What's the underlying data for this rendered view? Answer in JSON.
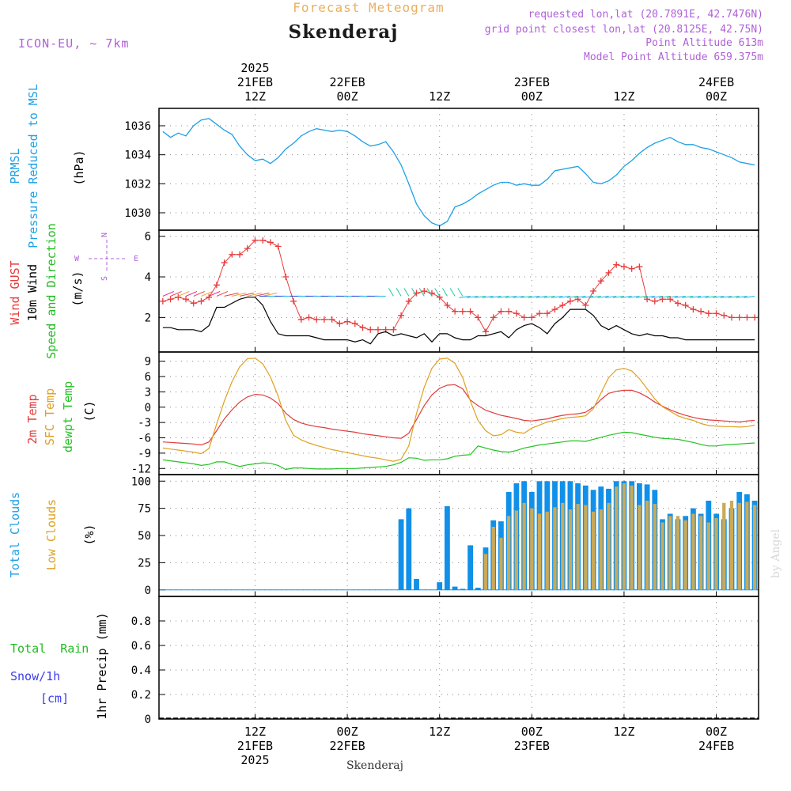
{
  "header": {
    "subtitle": "Forecast Meteogram",
    "location": "Skenderaj",
    "model": "ICON-EU, ~ 7km",
    "requested": "requested lon,lat (20.7891E, 42.7476N)",
    "gridpoint": "grid point closest lon,lat (20.8125E, 42.75N)",
    "point_alt": "Point Altitude 613m",
    "model_alt": "Model Point Altitude 659.375m",
    "watermark": "by Angel",
    "footer": "Skenderaj"
  },
  "colors": {
    "pressure": "#1ea0e6",
    "gust": "#e83c3c",
    "wind": "#000000",
    "dir_label": "#22bb22",
    "temp": "#e03c3c",
    "sfc_temp": "#e0a020",
    "dewpt": "#22c322",
    "total_clouds": "#1090e8",
    "low_clouds": "#c8aa5a",
    "label_purple": "#b060d8",
    "title_orange": "#e8b060",
    "rain": "#22bb22",
    "snow": "#3c3cee"
  },
  "time_axis": {
    "top_labels": [
      {
        "line1": "2025",
        "line2": "21FEB",
        "line3": "12Z",
        "t": 12
      },
      {
        "line1": "",
        "line2": "22FEB",
        "line3": "00Z",
        "t": 24
      },
      {
        "line1": "",
        "line2": "",
        "line3": "12Z",
        "t": 36
      },
      {
        "line1": "",
        "line2": "23FEB",
        "line3": "00Z",
        "t": 48
      },
      {
        "line1": "",
        "line2": "",
        "line3": "12Z",
        "t": 60
      },
      {
        "line1": "",
        "line2": "24FEB",
        "line3": "00Z",
        "t": 72
      }
    ],
    "bottom_labels": [
      {
        "line1": "12Z",
        "line2": "21FEB",
        "line3": "2025",
        "t": 12
      },
      {
        "line1": "00Z",
        "line2": "22FEB",
        "line3": "",
        "t": 24
      },
      {
        "line1": "12Z",
        "line2": "",
        "line3": "",
        "t": 36
      },
      {
        "line1": "00Z",
        "line2": "23FEB",
        "line3": "",
        "t": 48
      },
      {
        "line1": "12Z",
        "line2": "",
        "line3": "",
        "t": 60
      },
      {
        "line1": "00Z",
        "line2": "24FEB",
        "line3": "",
        "t": 72
      }
    ]
  },
  "panel_labels": {
    "pressure": {
      "name": "PRMSL",
      "desc": "Pressure Reduced to MSL",
      "unit": "(hPa)"
    },
    "wind": {
      "gust": "Wind GUST",
      "wind": "10m Wind",
      "dir": "Speed and Direction",
      "unit": "(m/s)",
      "compass_n": "N",
      "compass_s": "S",
      "compass_w": "W",
      "compass_e": "E"
    },
    "temp": {
      "t2m": "2m Temp",
      "sfc": "SFC Temp",
      "dew": "dewpt Temp",
      "unit": "(C)"
    },
    "clouds": {
      "total": "Total Clouds",
      "low": "Low Clouds",
      "unit": "(%)"
    },
    "precip": {
      "rain": "Total  Rain",
      "snow": "Snow/1h",
      "snow_unit": "[cm]",
      "unit": "1hr Precip (mm)"
    }
  },
  "chart_data": [
    {
      "type": "line",
      "name": "pressure",
      "ylim": [
        1028.8,
        1037.2
      ],
      "yticks": [
        "1030",
        "1032",
        "1034",
        "1036"
      ],
      "yticks_values": [
        1030,
        1032,
        1034,
        1036
      ],
      "x": [
        0,
        1,
        2,
        3,
        4,
        5,
        6,
        7,
        8,
        9,
        10,
        11,
        12,
        13,
        14,
        15,
        16,
        17,
        18,
        19,
        20,
        21,
        22,
        23,
        24,
        25,
        26,
        27,
        28,
        29,
        30,
        31,
        32,
        33,
        34,
        35,
        36,
        37,
        38,
        39,
        40,
        41,
        42,
        43,
        44,
        45,
        46,
        47,
        48,
        49,
        50,
        51,
        52,
        53,
        54,
        55,
        56,
        57,
        58,
        59,
        60,
        61,
        62,
        63,
        64,
        65,
        66,
        67,
        68,
        69,
        70,
        71,
        72,
        73,
        74,
        75,
        76,
        77
      ],
      "series": [
        {
          "values": [
            1035.6,
            1035.2,
            1035.5,
            1035.3,
            1036.0,
            1036.4,
            1036.5,
            1036.1,
            1035.7,
            1035.4,
            1034.6,
            1034.0,
            1033.6,
            1033.7,
            1033.4,
            1033.8,
            1034.4,
            1034.8,
            1035.3,
            1035.6,
            1035.8,
            1035.7,
            1035.6,
            1035.7,
            1035.6,
            1035.3,
            1034.9,
            1034.6,
            1034.7,
            1034.9,
            1034.2,
            1033.3,
            1032.0,
            1030.6,
            1029.8,
            1029.3,
            1029.1,
            1029.4,
            1030.4,
            1030.6,
            1030.9,
            1031.3,
            1031.6,
            1031.9,
            1032.1,
            1032.1,
            1031.9,
            1032.0,
            1031.9,
            1031.9,
            1032.3,
            1032.9,
            1033.0,
            1033.1,
            1033.2,
            1032.7,
            1032.1,
            1032.0,
            1032.2,
            1032.6,
            1033.2,
            1033.6,
            1034.1,
            1034.5,
            1034.8,
            1035.0,
            1035.2,
            1034.9,
            1034.7,
            1034.7,
            1034.5,
            1034.4,
            1034.2,
            1034.0,
            1033.8,
            1033.5,
            1033.4,
            1033.3
          ]
        }
      ]
    },
    {
      "type": "line",
      "name": "wind",
      "ylim": [
        0.3,
        6.3
      ],
      "yticks": [
        "2",
        "4",
        "6"
      ],
      "yticks_values": [
        2,
        4,
        6
      ],
      "x": [
        0,
        1,
        2,
        3,
        4,
        5,
        6,
        7,
        8,
        9,
        10,
        11,
        12,
        13,
        14,
        15,
        16,
        17,
        18,
        19,
        20,
        21,
        22,
        23,
        24,
        25,
        26,
        27,
        28,
        29,
        30,
        31,
        32,
        33,
        34,
        35,
        36,
        37,
        38,
        39,
        40,
        41,
        42,
        43,
        44,
        45,
        46,
        47,
        48,
        49,
        50,
        51,
        52,
        53,
        54,
        55,
        56,
        57,
        58,
        59,
        60,
        61,
        62,
        63,
        64,
        65,
        66,
        67,
        68,
        69,
        70,
        71,
        72,
        73,
        74,
        75,
        76,
        77
      ],
      "series": [
        {
          "values": [
            2.8,
            2.9,
            3.0,
            2.9,
            2.7,
            2.8,
            3.0,
            3.6,
            4.7,
            5.1,
            5.1,
            5.4,
            5.8,
            5.8,
            5.7,
            5.5,
            4.0,
            2.8,
            1.9,
            2.0,
            1.9,
            1.9,
            1.9,
            1.7,
            1.8,
            1.7,
            1.5,
            1.4,
            1.4,
            1.4,
            1.4,
            2.1,
            2.8,
            3.2,
            3.3,
            3.2,
            3.0,
            2.6,
            2.3,
            2.3,
            2.3,
            2.0,
            1.3,
            2.0,
            2.3,
            2.3,
            2.2,
            2.0,
            2.0,
            2.2,
            2.2,
            2.4,
            2.6,
            2.8,
            2.9,
            2.6,
            3.3,
            3.8,
            4.2,
            4.6,
            4.5,
            4.4,
            4.5,
            2.9,
            2.8,
            2.9,
            2.9,
            2.7,
            2.6,
            2.4,
            2.3,
            2.2,
            2.2,
            2.1,
            2.0,
            2.0,
            2.0,
            2.0
          ]
        },
        {
          "values": [
            1.5,
            1.5,
            1.4,
            1.4,
            1.4,
            1.3,
            1.6,
            2.5,
            2.5,
            2.7,
            2.9,
            3.0,
            3.0,
            2.6,
            1.8,
            1.2,
            1.1,
            1.1,
            1.1,
            1.1,
            1.0,
            0.9,
            0.9,
            0.9,
            0.9,
            0.8,
            0.9,
            0.7,
            1.2,
            1.3,
            1.1,
            1.2,
            1.1,
            1.0,
            1.2,
            0.8,
            1.2,
            1.2,
            1.0,
            0.9,
            0.9,
            1.1,
            1.1,
            1.2,
            1.3,
            1.0,
            1.4,
            1.6,
            1.7,
            1.5,
            1.2,
            1.7,
            2.0,
            2.4,
            2.4,
            2.4,
            2.1,
            1.6,
            1.4,
            1.6,
            1.4,
            1.2,
            1.1,
            1.2,
            1.1,
            1.1,
            1.0,
            1.0,
            0.9,
            0.9,
            0.9,
            0.9,
            0.9,
            0.9,
            0.9,
            0.9,
            0.9,
            0.9
          ]
        }
      ]
    },
    {
      "type": "line",
      "name": "temperature",
      "ylim": [
        -13.2,
        10.8
      ],
      "yticks": [
        "9",
        "6",
        "3",
        "0",
        "-3",
        "-6",
        "-9",
        "-12"
      ],
      "yticks_values": [
        9,
        6,
        3,
        0,
        -3,
        -6,
        -9,
        -12
      ],
      "x": [
        0,
        1,
        2,
        3,
        4,
        5,
        6,
        7,
        8,
        9,
        10,
        11,
        12,
        13,
        14,
        15,
        16,
        17,
        18,
        19,
        20,
        21,
        22,
        23,
        24,
        25,
        26,
        27,
        28,
        29,
        30,
        31,
        32,
        33,
        34,
        35,
        36,
        37,
        38,
        39,
        40,
        41,
        42,
        43,
        44,
        45,
        46,
        47,
        48,
        49,
        50,
        51,
        52,
        53,
        54,
        55,
        56,
        57,
        58,
        59,
        60,
        61,
        62,
        63,
        64,
        65,
        66,
        67,
        68,
        69,
        70,
        71,
        72,
        73,
        74,
        75,
        76,
        77
      ],
      "series": [
        {
          "values": [
            -6.8,
            -6.9,
            -7.0,
            -7.1,
            -7.2,
            -7.4,
            -6.8,
            -4.6,
            -2.3,
            -0.5,
            1.0,
            2.0,
            2.5,
            2.4,
            1.8,
            0.7,
            -1.2,
            -2.4,
            -3.1,
            -3.5,
            -3.8,
            -4.0,
            -4.3,
            -4.5,
            -4.7,
            -4.9,
            -5.2,
            -5.4,
            -5.6,
            -5.8,
            -6.0,
            -6.1,
            -5.1,
            -2.4,
            0.3,
            2.4,
            3.7,
            4.3,
            4.4,
            3.6,
            1.4,
            0.3,
            -0.6,
            -1.1,
            -1.6,
            -1.9,
            -2.2,
            -2.6,
            -2.7,
            -2.5,
            -2.3,
            -1.9,
            -1.6,
            -1.4,
            -1.3,
            -1.0,
            0.0,
            1.5,
            2.7,
            3.1,
            3.3,
            3.3,
            2.8,
            2.0,
            1.0,
            0.2,
            -0.5,
            -1.1,
            -1.6,
            -2.0,
            -2.3,
            -2.5,
            -2.6,
            -2.7,
            -2.8,
            -2.9,
            -2.7,
            -2.6
          ]
        },
        {
          "values": [
            -8.0,
            -8.2,
            -8.4,
            -8.6,
            -8.8,
            -9.1,
            -8.1,
            -3.3,
            1.2,
            5.0,
            7.9,
            9.5,
            9.6,
            8.5,
            5.9,
            2.2,
            -2.6,
            -5.5,
            -6.4,
            -7.0,
            -7.5,
            -7.9,
            -8.3,
            -8.6,
            -8.9,
            -9.2,
            -9.5,
            -9.8,
            -10.0,
            -10.3,
            -10.6,
            -10.2,
            -7.6,
            -1.2,
            3.9,
            7.6,
            9.4,
            9.6,
            8.6,
            5.8,
            1.2,
            -2.6,
            -4.6,
            -5.6,
            -5.4,
            -4.4,
            -4.9,
            -5.1,
            -4.1,
            -3.5,
            -2.9,
            -2.6,
            -2.2,
            -2.0,
            -1.9,
            -1.7,
            -0.3,
            2.8,
            5.8,
            7.3,
            7.6,
            7.1,
            5.6,
            3.6,
            1.6,
            0.1,
            -0.8,
            -1.7,
            -2.2,
            -2.6,
            -3.2,
            -3.6,
            -3.7,
            -3.8,
            -3.8,
            -3.9,
            -3.8,
            -3.5
          ]
        },
        {
          "values": [
            -10.3,
            -10.5,
            -10.7,
            -10.9,
            -11.1,
            -11.4,
            -11.2,
            -10.7,
            -10.7,
            -11.2,
            -11.6,
            -11.3,
            -11.1,
            -10.9,
            -11.0,
            -11.4,
            -12.2,
            -11.9,
            -11.9,
            -12.0,
            -12.1,
            -12.1,
            -12.1,
            -12.0,
            -12.0,
            -12.0,
            -11.9,
            -11.8,
            -11.7,
            -11.6,
            -11.3,
            -10.8,
            -9.9,
            -10.0,
            -10.4,
            -10.3,
            -10.3,
            -10.1,
            -9.6,
            -9.4,
            -9.3,
            -7.6,
            -8.0,
            -8.4,
            -8.7,
            -8.8,
            -8.5,
            -8.0,
            -7.7,
            -7.4,
            -7.2,
            -7.0,
            -6.8,
            -6.6,
            -6.6,
            -6.7,
            -6.3,
            -5.9,
            -5.5,
            -5.2,
            -4.9,
            -5.0,
            -5.3,
            -5.6,
            -5.9,
            -6.1,
            -6.2,
            -6.3,
            -6.6,
            -6.9,
            -7.3,
            -7.6,
            -7.6,
            -7.4,
            -7.3,
            -7.2,
            -7.1,
            -7.0
          ]
        }
      ]
    },
    {
      "type": "bar",
      "name": "clouds",
      "ylim": [
        -6,
        106
      ],
      "yticks": [
        "0",
        "25",
        "50",
        "75",
        "100"
      ],
      "yticks_values": [
        0,
        25,
        50,
        75,
        100
      ],
      "x": [
        0,
        1,
        2,
        3,
        4,
        5,
        6,
        7,
        8,
        9,
        10,
        11,
        12,
        13,
        14,
        15,
        16,
        17,
        18,
        19,
        20,
        21,
        22,
        23,
        24,
        25,
        26,
        27,
        28,
        29,
        30,
        31,
        32,
        33,
        34,
        35,
        36,
        37,
        38,
        39,
        40,
        41,
        42,
        43,
        44,
        45,
        46,
        47,
        48,
        49,
        50,
        51,
        52,
        53,
        54,
        55,
        56,
        57,
        58,
        59,
        60,
        61,
        62,
        63,
        64,
        65,
        66,
        67,
        68,
        69,
        70,
        71,
        72,
        73,
        74,
        75,
        76,
        77
      ],
      "series": [
        {
          "values": [
            0,
            0,
            0,
            0,
            0,
            0,
            0,
            0,
            0,
            0,
            0,
            0,
            0,
            0,
            0,
            0,
            0,
            0,
            0,
            0,
            0,
            0,
            0,
            0,
            0,
            0,
            0,
            0,
            0,
            0,
            0,
            65,
            75,
            10,
            0,
            0,
            7,
            77,
            3,
            1,
            41,
            2,
            39,
            64,
            63,
            90,
            98,
            100,
            90,
            100,
            100,
            100,
            100,
            100,
            98,
            96,
            92,
            95,
            93,
            100,
            100,
            100,
            98,
            97,
            92,
            65,
            70,
            65,
            68,
            75,
            70,
            82,
            70,
            65,
            75,
            90,
            88,
            82
          ]
        },
        {
          "values": [
            0,
            0,
            0,
            0,
            0,
            0,
            0,
            0,
            0,
            0,
            0,
            0,
            0,
            0,
            0,
            0,
            0,
            0,
            0,
            0,
            0,
            0,
            0,
            0,
            0,
            0,
            0,
            0,
            0,
            0,
            0,
            0,
            0,
            0,
            0,
            0,
            0,
            0,
            0,
            0,
            0,
            0,
            33,
            58,
            48,
            68,
            73,
            80,
            75,
            70,
            72,
            76,
            80,
            74,
            79,
            78,
            72,
            74,
            80,
            95,
            98,
            96,
            78,
            82,
            79,
            62,
            68,
            68,
            64,
            70,
            68,
            62,
            66,
            80,
            82,
            80,
            81,
            78
          ]
        }
      ]
    },
    {
      "type": "line",
      "name": "precipitation",
      "ylim": [
        0,
        1.0
      ],
      "yticks": [
        "0",
        "0.2",
        "0.4",
        "0.6",
        "0.8"
      ],
      "yticks_values": [
        0,
        0.2,
        0.4,
        0.6,
        0.8
      ],
      "x": [
        0,
        77
      ],
      "series": [
        {
          "values": [
            0,
            0
          ]
        }
      ]
    }
  ]
}
